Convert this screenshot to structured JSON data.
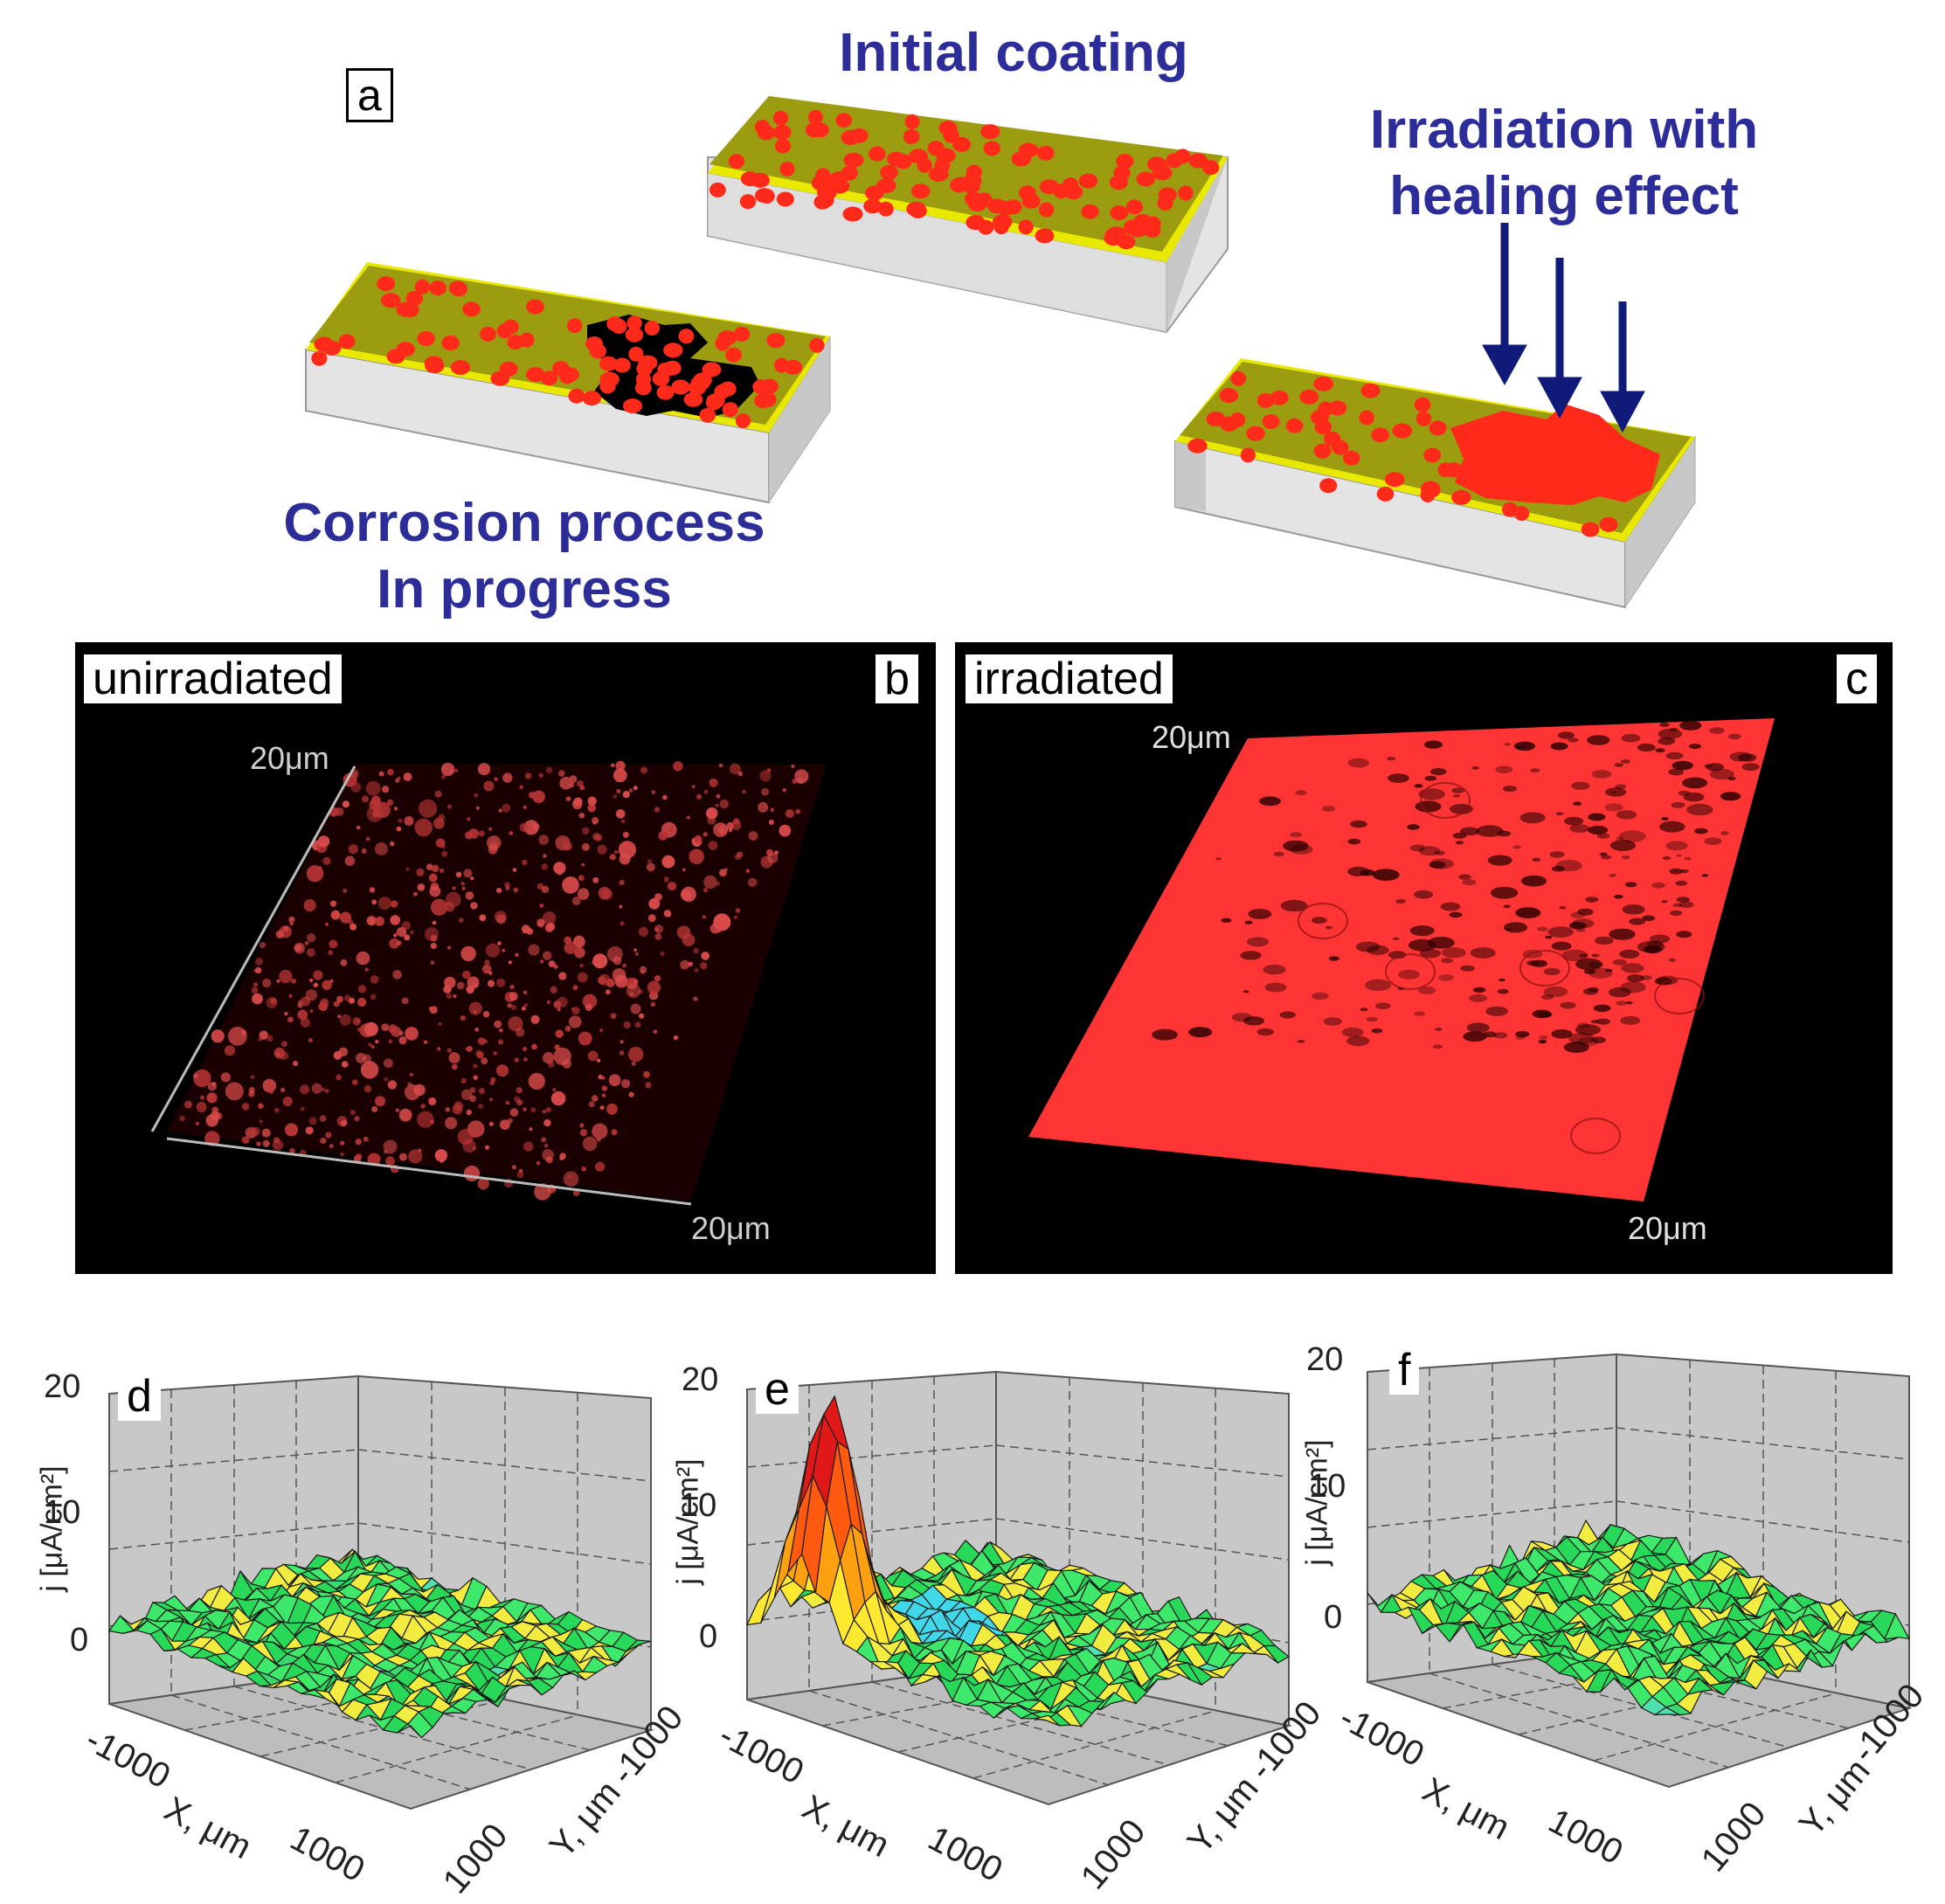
{
  "panel_a": {
    "letter": "a",
    "initial_label": "Initial coating",
    "corrosion_label_line1": "Corrosion process",
    "corrosion_label_line2": "In progress",
    "irradiation_label_line1": "Irradiation with",
    "irradiation_label_line2": "healing effect"
  },
  "panel_b": {
    "tag": "unirradiated",
    "letter": "b",
    "scale_top": "20μm",
    "scale_bottom": "20μm"
  },
  "panel_c": {
    "tag": "irradiated",
    "letter": "c",
    "scale_top": "20μm",
    "scale_bottom": "20μm"
  },
  "plots": {
    "d": {
      "letter": "d",
      "zlabel": "j [μA/cm²]",
      "zticks": [
        "20",
        "10",
        "0"
      ],
      "xticks": [
        "-1000",
        "1000"
      ],
      "yticks": [
        "-1000",
        "1000"
      ],
      "xlabel": "X, μm",
      "ylabel": "Y, μm"
    },
    "e": {
      "letter": "e",
      "zlabel": "j [μA/cm²]",
      "zticks": [
        "20",
        "10",
        "0"
      ],
      "xticks": [
        "-1000",
        "1000"
      ],
      "yticks": [
        "-1000",
        "1000"
      ],
      "xlabel": "X, μm",
      "ylabel": "Y, μm"
    },
    "f": {
      "letter": "f",
      "zlabel": "j [μA/cm²]",
      "zticks": [
        "20",
        "10",
        "0"
      ],
      "xticks": [
        "-1000",
        "1000"
      ],
      "yticks": [
        "-1000",
        "1000"
      ],
      "xlabel": "X, μm",
      "ylabel": "Y, μm"
    }
  },
  "colors": {
    "title_blue": "#2d2d9a",
    "coating_olive": "#9c9c10",
    "coating_edge": "#e8e800",
    "inhibitor_red": "#ff2a1a",
    "substrate": "#dcdcdc",
    "arrow_navy": "#101a78"
  }
}
